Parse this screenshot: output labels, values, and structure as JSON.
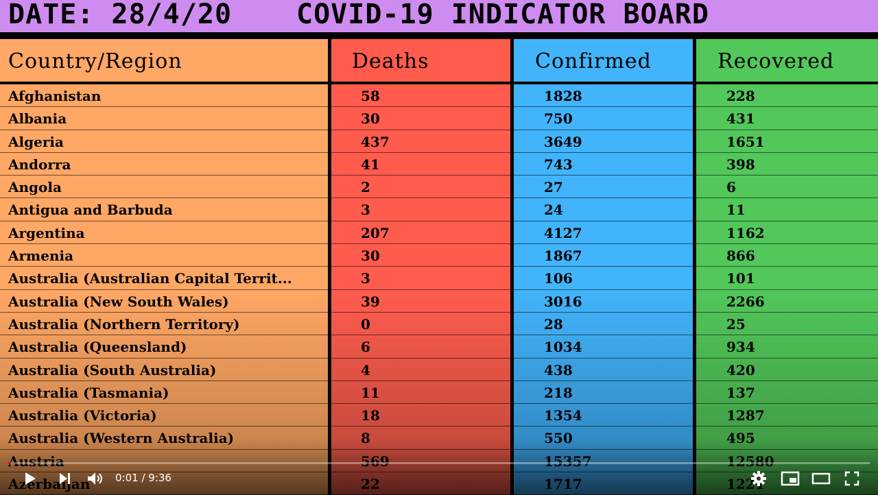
{
  "banner": {
    "date": "DATE: 28/4/20",
    "title": "COVID-19 INDICATOR BOARD"
  },
  "table": {
    "headers": {
      "country": "Country/Region",
      "deaths": "Deaths",
      "confirmed": "Confirmed",
      "recovered": "Recovered"
    },
    "rows": [
      {
        "country": "Afghanistan",
        "deaths": "58",
        "confirmed": "1828",
        "recovered": "228"
      },
      {
        "country": "Albania",
        "deaths": "30",
        "confirmed": "750",
        "recovered": "431"
      },
      {
        "country": "Algeria",
        "deaths": "437",
        "confirmed": "3649",
        "recovered": "1651"
      },
      {
        "country": "Andorra",
        "deaths": "41",
        "confirmed": "743",
        "recovered": "398"
      },
      {
        "country": "Angola",
        "deaths": "2",
        "confirmed": "27",
        "recovered": "6"
      },
      {
        "country": "Antigua and Barbuda",
        "deaths": "3",
        "confirmed": "24",
        "recovered": "11"
      },
      {
        "country": "Argentina",
        "deaths": "207",
        "confirmed": "4127",
        "recovered": "1162"
      },
      {
        "country": "Armenia",
        "deaths": "30",
        "confirmed": "1867",
        "recovered": "866"
      },
      {
        "country": "Australia (Australian Capital Territ...",
        "deaths": "3",
        "confirmed": "106",
        "recovered": "101"
      },
      {
        "country": "Australia (New South Wales)",
        "deaths": "39",
        "confirmed": "3016",
        "recovered": "2266"
      },
      {
        "country": "Australia (Northern Territory)",
        "deaths": "0",
        "confirmed": "28",
        "recovered": "25"
      },
      {
        "country": "Australia (Queensland)",
        "deaths": "6",
        "confirmed": "1034",
        "recovered": "934"
      },
      {
        "country": "Australia (South Australia)",
        "deaths": "4",
        "confirmed": "438",
        "recovered": "420"
      },
      {
        "country": "Australia (Tasmania)",
        "deaths": "11",
        "confirmed": "218",
        "recovered": "137"
      },
      {
        "country": "Australia (Victoria)",
        "deaths": "18",
        "confirmed": "1354",
        "recovered": "1287"
      },
      {
        "country": "Australia (Western Australia)",
        "deaths": "8",
        "confirmed": "550",
        "recovered": "495"
      },
      {
        "country": "Austria",
        "deaths": "569",
        "confirmed": "15357",
        "recovered": "12580"
      },
      {
        "country": "Azerbaijan",
        "deaths": "22",
        "confirmed": "1717",
        "recovered": "1221"
      }
    ]
  },
  "player": {
    "time": "0:01 / 9:36",
    "progress": 0.002,
    "icons": [
      "play-icon",
      "next-icon",
      "volume-icon",
      "settings-icon",
      "miniplayer-icon",
      "theater-icon",
      "fullscreen-icon"
    ]
  }
}
